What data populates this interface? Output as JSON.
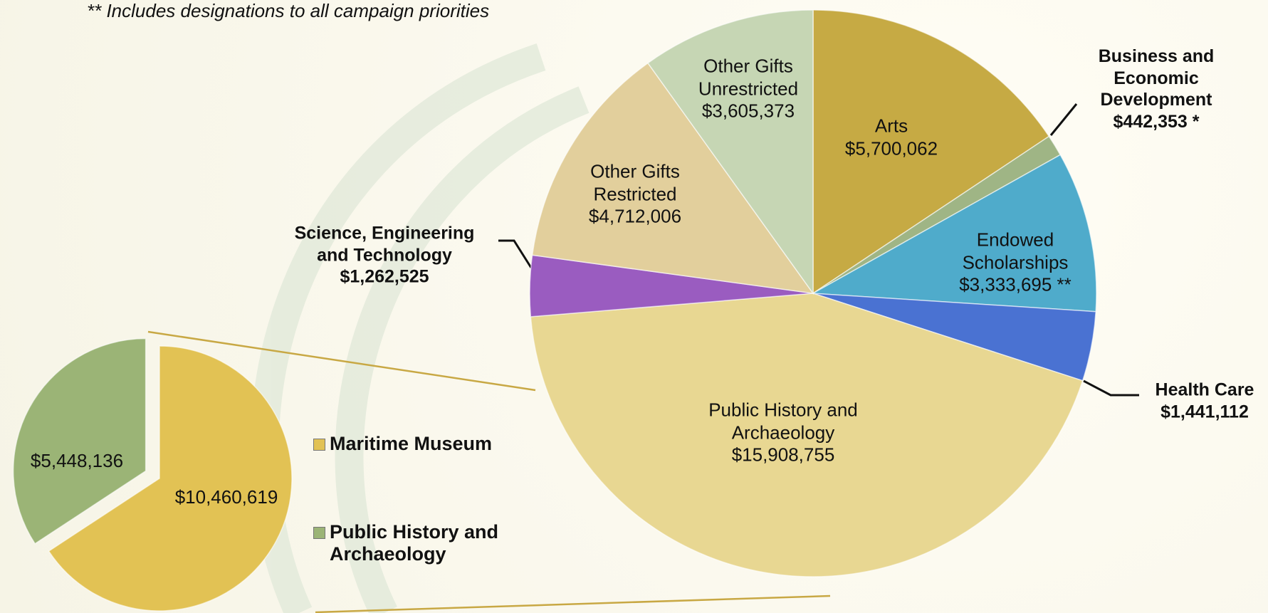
{
  "chart_data": [
    {
      "type": "pie",
      "note": "** Includes designations to all campaign priorities",
      "categories": [
        "Arts",
        "Business and Economic Development",
        "Endowed Scholarships",
        "Health Care",
        "Public History and Archaeology",
        "Science, Engineering and Technology",
        "Other Gifts Restricted",
        "Other Gifts Unrestricted"
      ],
      "values": [
        5700062,
        442353,
        3333695,
        1441112,
        15908755,
        1262525,
        4712006,
        3605373
      ],
      "value_labels": [
        "$5,700,062",
        "$442,353 *",
        "$3,333,695 **",
        "$1,441,112",
        "$15,908,755",
        "$1,262,525",
        "$4,712,006",
        "$3,605,373"
      ],
      "colors": [
        "#c6aa44",
        "#9fb585",
        "#4fabcb",
        "#4a72d2",
        "#e8d792",
        "#9a5cc0",
        "#e2cf9c",
        "#c6d6b4"
      ]
    },
    {
      "type": "pie",
      "categories": [
        "Maritime Museum",
        "Public History and Archaeology"
      ],
      "values": [
        10460619,
        5448136
      ],
      "value_labels": [
        "$10,460,619",
        "$5,448,136"
      ],
      "colors": [
        "#e2c254",
        "#9bb476"
      ],
      "legend": "right"
    }
  ]
}
